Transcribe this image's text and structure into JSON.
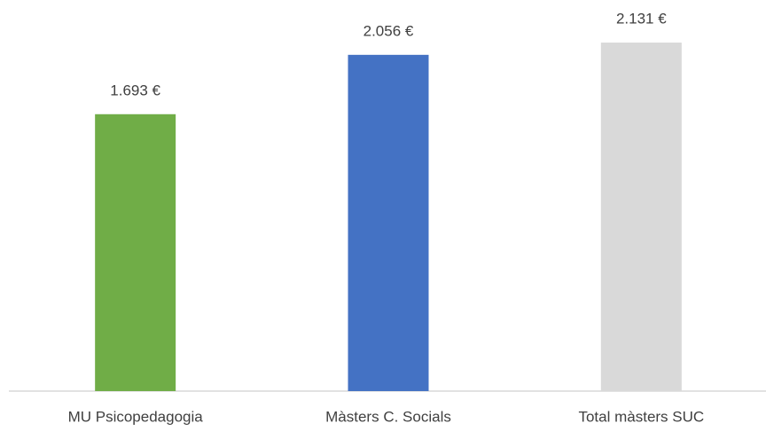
{
  "chart_data": {
    "type": "bar",
    "categories": [
      "MU Psicopedagogia",
      "Màsters C. Socials",
      "Total màsters SUC"
    ],
    "values": [
      1693,
      2056,
      2131
    ],
    "value_labels": [
      "1.693 €",
      "2.056 €",
      "2.131 €"
    ],
    "colors": [
      "#70ad47",
      "#4472c4",
      "#d9d9d9"
    ]
  }
}
